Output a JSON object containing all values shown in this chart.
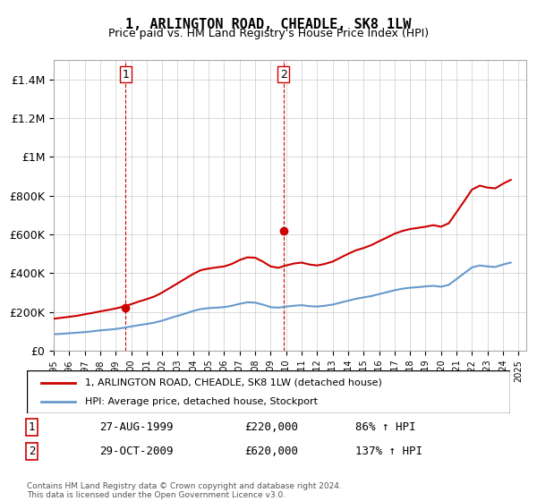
{
  "title": "1, ARLINGTON ROAD, CHEADLE, SK8 1LW",
  "subtitle": "Price paid vs. HM Land Registry's House Price Index (HPI)",
  "legend_line1": "1, ARLINGTON ROAD, CHEADLE, SK8 1LW (detached house)",
  "legend_line2": "HPI: Average price, detached house, Stockport",
  "footer1": "Contains HM Land Registry data © Crown copyright and database right 2024.",
  "footer2": "This data is licensed under the Open Government Licence v3.0.",
  "transaction1_label": "1",
  "transaction1_date": "27-AUG-1999",
  "transaction1_price": "£220,000",
  "transaction1_hpi": "86% ↑ HPI",
  "transaction2_label": "2",
  "transaction2_date": "29-OCT-2009",
  "transaction2_price": "£620,000",
  "transaction2_hpi": "137% ↑ HPI",
  "xmin": 1995.0,
  "xmax": 2025.5,
  "ymin": 0,
  "ymax": 1500000,
  "red_color": "#cc0000",
  "blue_color": "#6699cc",
  "marker_color": "#cc0000",
  "vline_color": "#cc0000",
  "grid_color": "#cccccc",
  "background_color": "#ffffff",
  "transaction1_x": 1999.65,
  "transaction1_y": 220000,
  "transaction2_x": 2009.83,
  "transaction2_y": 620000,
  "hpi_series_x": [
    1995.0,
    1995.5,
    1996.0,
    1996.5,
    1997.0,
    1997.5,
    1998.0,
    1998.5,
    1999.0,
    1999.5,
    2000.0,
    2000.5,
    2001.0,
    2001.5,
    2002.0,
    2002.5,
    2003.0,
    2003.5,
    2004.0,
    2004.5,
    2005.0,
    2005.5,
    2006.0,
    2006.5,
    2007.0,
    2007.5,
    2008.0,
    2008.5,
    2009.0,
    2009.5,
    2010.0,
    2010.5,
    2011.0,
    2011.5,
    2012.0,
    2012.5,
    2013.0,
    2013.5,
    2014.0,
    2014.5,
    2015.0,
    2015.5,
    2016.0,
    2016.5,
    2017.0,
    2017.5,
    2018.0,
    2018.5,
    2019.0,
    2019.5,
    2020.0,
    2020.5,
    2021.0,
    2021.5,
    2022.0,
    2022.5,
    2023.0,
    2023.5,
    2024.0,
    2024.5
  ],
  "hpi_series_y": [
    85000,
    87000,
    90000,
    93000,
    96000,
    100000,
    105000,
    108000,
    112000,
    118000,
    125000,
    132000,
    138000,
    145000,
    155000,
    168000,
    180000,
    192000,
    205000,
    215000,
    220000,
    222000,
    225000,
    232000,
    242000,
    250000,
    248000,
    238000,
    225000,
    222000,
    228000,
    232000,
    235000,
    230000,
    228000,
    232000,
    238000,
    248000,
    258000,
    268000,
    275000,
    282000,
    292000,
    302000,
    312000,
    320000,
    325000,
    328000,
    332000,
    335000,
    330000,
    340000,
    370000,
    400000,
    430000,
    440000,
    435000,
    432000,
    445000,
    455000
  ],
  "red_series_x": [
    1995.0,
    1995.5,
    1996.0,
    1996.5,
    1997.0,
    1997.5,
    1998.0,
    1998.5,
    1999.0,
    1999.5,
    2000.0,
    2000.5,
    2001.0,
    2001.5,
    2002.0,
    2002.5,
    2003.0,
    2003.5,
    2004.0,
    2004.5,
    2005.0,
    2005.5,
    2006.0,
    2006.5,
    2007.0,
    2007.5,
    2008.0,
    2008.5,
    2009.0,
    2009.5,
    2010.0,
    2010.5,
    2011.0,
    2011.5,
    2012.0,
    2012.5,
    2013.0,
    2013.5,
    2014.0,
    2014.5,
    2015.0,
    2015.5,
    2016.0,
    2016.5,
    2017.0,
    2017.5,
    2018.0,
    2018.5,
    2019.0,
    2019.5,
    2020.0,
    2020.5,
    2021.0,
    2021.5,
    2022.0,
    2022.5,
    2023.0,
    2023.5,
    2024.0,
    2024.5
  ],
  "red_series_y": [
    165000,
    170000,
    175000,
    180000,
    188000,
    195000,
    203000,
    210000,
    218000,
    228000,
    240000,
    254000,
    266000,
    280000,
    300000,
    324000,
    348000,
    372000,
    396000,
    416000,
    424000,
    430000,
    435000,
    448000,
    468000,
    482000,
    480000,
    460000,
    435000,
    428000,
    440000,
    450000,
    455000,
    445000,
    440000,
    448000,
    460000,
    480000,
    500000,
    518000,
    530000,
    545000,
    565000,
    584000,
    604000,
    618000,
    628000,
    634000,
    640000,
    648000,
    640000,
    658000,
    715000,
    773000,
    832000,
    852000,
    842000,
    838000,
    862000,
    882000
  ],
  "yticks": [
    0,
    200000,
    400000,
    600000,
    800000,
    1000000,
    1200000,
    1400000
  ],
  "ytick_labels": [
    "£0",
    "£200K",
    "£400K",
    "£600K",
    "£800K",
    "£1M",
    "£1.2M",
    "£1.4M"
  ]
}
